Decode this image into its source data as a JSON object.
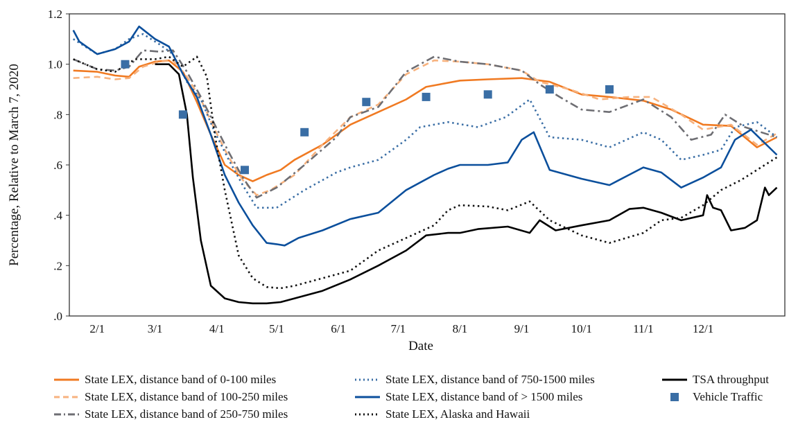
{
  "chart_data": {
    "type": "line",
    "xlabel": "Date",
    "ylabel": "Percentage, Relative to March 7, 2020",
    "x_ticks": [
      "2/1",
      "3/1",
      "4/1",
      "5/1",
      "6/1",
      "7/1",
      "8/1",
      "9/1",
      "10/1",
      "11/1",
      "12/1"
    ],
    "y_ticks": [
      ".0",
      ".2",
      ".4",
      ".6",
      ".8",
      "1.0",
      "1.2"
    ],
    "ylim": [
      0,
      1.2
    ],
    "xlim": [
      "2020-01-18",
      "2021-01-11"
    ],
    "grid": false,
    "legend_position": "bottom",
    "series": [
      {
        "name": "State LEX, distance band of 0-100 miles",
        "color": "#f07a22",
        "style": "solid",
        "points": [
          [
            "2020-01-20",
            0.975
          ],
          [
            "2020-02-01",
            0.97
          ],
          [
            "2020-02-10",
            0.955
          ],
          [
            "2020-02-17",
            0.95
          ],
          [
            "2020-02-22",
            0.99
          ],
          [
            "2020-03-01",
            1.01
          ],
          [
            "2020-03-08",
            1.015
          ],
          [
            "2020-03-15",
            0.97
          ],
          [
            "2020-03-22",
            0.85
          ],
          [
            "2020-03-29",
            0.72
          ],
          [
            "2020-04-05",
            0.6
          ],
          [
            "2020-04-12",
            0.56
          ],
          [
            "2020-04-19",
            0.535
          ],
          [
            "2020-04-26",
            0.56
          ],
          [
            "2020-05-03",
            0.58
          ],
          [
            "2020-05-10",
            0.62
          ],
          [
            "2020-05-24",
            0.68
          ],
          [
            "2020-06-07",
            0.76
          ],
          [
            "2020-06-21",
            0.81
          ],
          [
            "2020-07-05",
            0.86
          ],
          [
            "2020-07-15",
            0.91
          ],
          [
            "2020-08-01",
            0.935
          ],
          [
            "2020-08-15",
            0.94
          ],
          [
            "2020-09-01",
            0.945
          ],
          [
            "2020-09-15",
            0.93
          ],
          [
            "2020-10-01",
            0.88
          ],
          [
            "2020-10-15",
            0.87
          ],
          [
            "2020-11-01",
            0.855
          ],
          [
            "2020-11-15",
            0.82
          ],
          [
            "2020-12-01",
            0.76
          ],
          [
            "2020-12-15",
            0.755
          ],
          [
            "2020-12-28",
            0.67
          ],
          [
            "2021-01-07",
            0.71
          ]
        ]
      },
      {
        "name": "State LEX, distance band of 100-250 miles",
        "color": "#f7b27e",
        "style": "dashed",
        "points": [
          [
            "2020-01-20",
            0.945
          ],
          [
            "2020-02-01",
            0.95
          ],
          [
            "2020-02-10",
            0.94
          ],
          [
            "2020-02-17",
            0.945
          ],
          [
            "2020-02-24",
            0.99
          ],
          [
            "2020-03-03",
            1.01
          ],
          [
            "2020-03-10",
            1.015
          ],
          [
            "2020-03-17",
            0.95
          ],
          [
            "2020-03-24",
            0.86
          ],
          [
            "2020-03-31",
            0.74
          ],
          [
            "2020-04-07",
            0.63
          ],
          [
            "2020-04-14",
            0.54
          ],
          [
            "2020-04-21",
            0.48
          ],
          [
            "2020-04-28",
            0.5
          ],
          [
            "2020-05-10",
            0.56
          ],
          [
            "2020-05-24",
            0.68
          ],
          [
            "2020-06-07",
            0.79
          ],
          [
            "2020-06-21",
            0.84
          ],
          [
            "2020-07-05",
            0.96
          ],
          [
            "2020-07-19",
            1.015
          ],
          [
            "2020-08-01",
            1.01
          ],
          [
            "2020-08-15",
            1.0
          ],
          [
            "2020-09-01",
            0.975
          ],
          [
            "2020-09-10",
            0.93
          ],
          [
            "2020-09-25",
            0.9
          ],
          [
            "2020-10-10",
            0.86
          ],
          [
            "2020-10-25",
            0.87
          ],
          [
            "2020-11-05",
            0.87
          ],
          [
            "2020-11-20",
            0.8
          ],
          [
            "2020-12-01",
            0.74
          ],
          [
            "2020-12-15",
            0.76
          ],
          [
            "2020-12-28",
            0.68
          ],
          [
            "2021-01-07",
            0.725
          ]
        ]
      },
      {
        "name": "State LEX, distance band of 250-750 miles",
        "color": "#6e6e73",
        "style": "dashdot",
        "points": [
          [
            "2020-01-20",
            1.02
          ],
          [
            "2020-02-01",
            0.98
          ],
          [
            "2020-02-10",
            0.975
          ],
          [
            "2020-02-17",
            0.99
          ],
          [
            "2020-02-24",
            1.055
          ],
          [
            "2020-03-03",
            1.05
          ],
          [
            "2020-03-10",
            1.055
          ],
          [
            "2020-03-17",
            0.97
          ],
          [
            "2020-03-24",
            0.87
          ],
          [
            "2020-03-31",
            0.76
          ],
          [
            "2020-04-07",
            0.65
          ],
          [
            "2020-04-14",
            0.55
          ],
          [
            "2020-04-21",
            0.47
          ],
          [
            "2020-05-01",
            0.51
          ],
          [
            "2020-05-15",
            0.6
          ],
          [
            "2020-05-31",
            0.71
          ],
          [
            "2020-06-07",
            0.79
          ],
          [
            "2020-06-21",
            0.83
          ],
          [
            "2020-07-05",
            0.97
          ],
          [
            "2020-07-19",
            1.03
          ],
          [
            "2020-08-01",
            1.01
          ],
          [
            "2020-08-15",
            1.0
          ],
          [
            "2020-09-01",
            0.975
          ],
          [
            "2020-09-10",
            0.92
          ],
          [
            "2020-09-20",
            0.87
          ],
          [
            "2020-10-01",
            0.82
          ],
          [
            "2020-10-15",
            0.81
          ],
          [
            "2020-11-01",
            0.86
          ],
          [
            "2020-11-15",
            0.79
          ],
          [
            "2020-11-25",
            0.7
          ],
          [
            "2020-12-05",
            0.72
          ],
          [
            "2020-12-12",
            0.8
          ],
          [
            "2020-12-22",
            0.75
          ],
          [
            "2021-01-07",
            0.71
          ]
        ]
      },
      {
        "name": "State LEX, distance band of 750-1500 miles",
        "color": "#3a6ea5",
        "style": "dotted",
        "points": [
          [
            "2020-01-20",
            1.1
          ],
          [
            "2020-02-01",
            1.04
          ],
          [
            "2020-02-10",
            1.06
          ],
          [
            "2020-02-17",
            1.1
          ],
          [
            "2020-02-24",
            1.12
          ],
          [
            "2020-03-03",
            1.08
          ],
          [
            "2020-03-10",
            1.04
          ],
          [
            "2020-03-17",
            0.93
          ],
          [
            "2020-03-24",
            0.86
          ],
          [
            "2020-03-31",
            0.73
          ],
          [
            "2020-04-07",
            0.62
          ],
          [
            "2020-04-14",
            0.52
          ],
          [
            "2020-04-21",
            0.43
          ],
          [
            "2020-05-01",
            0.43
          ],
          [
            "2020-05-15",
            0.5
          ],
          [
            "2020-05-31",
            0.57
          ],
          [
            "2020-06-07",
            0.59
          ],
          [
            "2020-06-21",
            0.62
          ],
          [
            "2020-07-05",
            0.7
          ],
          [
            "2020-07-12",
            0.75
          ],
          [
            "2020-07-26",
            0.77
          ],
          [
            "2020-08-10",
            0.75
          ],
          [
            "2020-08-24",
            0.79
          ],
          [
            "2020-09-05",
            0.86
          ],
          [
            "2020-09-15",
            0.71
          ],
          [
            "2020-10-01",
            0.7
          ],
          [
            "2020-10-15",
            0.67
          ],
          [
            "2020-11-01",
            0.73
          ],
          [
            "2020-11-10",
            0.7
          ],
          [
            "2020-11-20",
            0.62
          ],
          [
            "2020-12-01",
            0.64
          ],
          [
            "2020-12-10",
            0.66
          ],
          [
            "2020-12-17",
            0.75
          ],
          [
            "2020-12-28",
            0.77
          ],
          [
            "2021-01-07",
            0.71
          ]
        ]
      },
      {
        "name": "State LEX, distance band of > 1500 miles",
        "color": "#0b4f9c",
        "style": "solid",
        "points": [
          [
            "2020-01-20",
            1.135
          ],
          [
            "2020-01-23",
            1.09
          ],
          [
            "2020-02-01",
            1.04
          ],
          [
            "2020-02-10",
            1.06
          ],
          [
            "2020-02-17",
            1.09
          ],
          [
            "2020-02-22",
            1.15
          ],
          [
            "2020-03-01",
            1.1
          ],
          [
            "2020-03-08",
            1.07
          ],
          [
            "2020-03-15",
            0.96
          ],
          [
            "2020-03-22",
            0.87
          ],
          [
            "2020-03-29",
            0.72
          ],
          [
            "2020-04-05",
            0.56
          ],
          [
            "2020-04-12",
            0.45
          ],
          [
            "2020-04-19",
            0.36
          ],
          [
            "2020-04-26",
            0.29
          ],
          [
            "2020-05-01",
            0.285
          ],
          [
            "2020-05-05",
            0.28
          ],
          [
            "2020-05-12",
            0.31
          ],
          [
            "2020-05-24",
            0.34
          ],
          [
            "2020-06-07",
            0.385
          ],
          [
            "2020-06-21",
            0.41
          ],
          [
            "2020-07-05",
            0.5
          ],
          [
            "2020-07-19",
            0.56
          ],
          [
            "2020-07-26",
            0.585
          ],
          [
            "2020-08-01",
            0.6
          ],
          [
            "2020-08-15",
            0.6
          ],
          [
            "2020-08-25",
            0.61
          ],
          [
            "2020-09-01",
            0.7
          ],
          [
            "2020-09-07",
            0.73
          ],
          [
            "2020-09-15",
            0.58
          ],
          [
            "2020-10-01",
            0.545
          ],
          [
            "2020-10-15",
            0.52
          ],
          [
            "2020-11-01",
            0.59
          ],
          [
            "2020-11-10",
            0.57
          ],
          [
            "2020-11-20",
            0.51
          ],
          [
            "2020-12-01",
            0.55
          ],
          [
            "2020-12-10",
            0.59
          ],
          [
            "2020-12-17",
            0.7
          ],
          [
            "2020-12-25",
            0.74
          ],
          [
            "2021-01-07",
            0.64
          ]
        ]
      },
      {
        "name": "State LEX, Alaska and Hawaii",
        "color": "#111111",
        "style": "dotted",
        "points": [
          [
            "2020-01-20",
            1.02
          ],
          [
            "2020-02-01",
            0.98
          ],
          [
            "2020-02-10",
            0.97
          ],
          [
            "2020-02-20",
            1.02
          ],
          [
            "2020-03-01",
            1.02
          ],
          [
            "2020-03-08",
            1.03
          ],
          [
            "2020-03-15",
            0.99
          ],
          [
            "2020-03-22",
            1.03
          ],
          [
            "2020-03-27",
            0.95
          ],
          [
            "2020-03-31",
            0.72
          ],
          [
            "2020-04-05",
            0.5
          ],
          [
            "2020-04-12",
            0.24
          ],
          [
            "2020-04-19",
            0.15
          ],
          [
            "2020-04-26",
            0.115
          ],
          [
            "2020-05-03",
            0.11
          ],
          [
            "2020-05-10",
            0.12
          ],
          [
            "2020-05-24",
            0.15
          ],
          [
            "2020-06-07",
            0.18
          ],
          [
            "2020-06-21",
            0.26
          ],
          [
            "2020-07-05",
            0.31
          ],
          [
            "2020-07-19",
            0.36
          ],
          [
            "2020-07-26",
            0.42
          ],
          [
            "2020-08-01",
            0.44
          ],
          [
            "2020-08-15",
            0.435
          ],
          [
            "2020-08-25",
            0.42
          ],
          [
            "2020-09-05",
            0.455
          ],
          [
            "2020-09-15",
            0.38
          ],
          [
            "2020-10-01",
            0.32
          ],
          [
            "2020-10-15",
            0.29
          ],
          [
            "2020-11-01",
            0.33
          ],
          [
            "2020-11-10",
            0.38
          ],
          [
            "2020-11-20",
            0.39
          ],
          [
            "2020-12-01",
            0.44
          ],
          [
            "2020-12-10",
            0.5
          ],
          [
            "2020-12-20",
            0.54
          ],
          [
            "2021-01-07",
            0.63
          ]
        ]
      },
      {
        "name": "TSA throughput",
        "color": "#000000",
        "style": "solid",
        "points": [
          [
            "2020-03-01",
            1.0
          ],
          [
            "2020-03-08",
            1.0
          ],
          [
            "2020-03-13",
            0.96
          ],
          [
            "2020-03-17",
            0.8
          ],
          [
            "2020-03-20",
            0.55
          ],
          [
            "2020-03-24",
            0.3
          ],
          [
            "2020-03-29",
            0.12
          ],
          [
            "2020-04-05",
            0.07
          ],
          [
            "2020-04-12",
            0.055
          ],
          [
            "2020-04-19",
            0.05
          ],
          [
            "2020-04-26",
            0.05
          ],
          [
            "2020-05-03",
            0.055
          ],
          [
            "2020-05-10",
            0.07
          ],
          [
            "2020-05-24",
            0.1
          ],
          [
            "2020-06-07",
            0.145
          ],
          [
            "2020-06-21",
            0.2
          ],
          [
            "2020-07-05",
            0.26
          ],
          [
            "2020-07-15",
            0.32
          ],
          [
            "2020-07-26",
            0.33
          ],
          [
            "2020-08-01",
            0.33
          ],
          [
            "2020-08-10",
            0.345
          ],
          [
            "2020-08-25",
            0.355
          ],
          [
            "2020-09-05",
            0.33
          ],
          [
            "2020-09-10",
            0.38
          ],
          [
            "2020-09-18",
            0.34
          ],
          [
            "2020-10-01",
            0.36
          ],
          [
            "2020-10-15",
            0.38
          ],
          [
            "2020-10-25",
            0.425
          ],
          [
            "2020-11-01",
            0.43
          ],
          [
            "2020-11-10",
            0.41
          ],
          [
            "2020-11-20",
            0.38
          ],
          [
            "2020-12-01",
            0.4
          ],
          [
            "2020-12-03",
            0.48
          ],
          [
            "2020-12-06",
            0.43
          ],
          [
            "2020-12-10",
            0.42
          ],
          [
            "2020-12-15",
            0.34
          ],
          [
            "2020-12-22",
            0.35
          ],
          [
            "2020-12-28",
            0.38
          ],
          [
            "2021-01-01",
            0.51
          ],
          [
            "2021-01-03",
            0.48
          ],
          [
            "2021-01-07",
            0.51
          ]
        ]
      }
    ],
    "markers": {
      "name": "Vehicle Traffic",
      "color": "#3a6ea5",
      "points": [
        [
          "2020-02-15",
          1.0
        ],
        [
          "2020-03-15",
          0.8
        ],
        [
          "2020-04-15",
          0.58
        ],
        [
          "2020-05-15",
          0.73
        ],
        [
          "2020-06-15",
          0.85
        ],
        [
          "2020-07-15",
          0.87
        ],
        [
          "2020-08-15",
          0.88
        ],
        [
          "2020-09-15",
          0.9
        ],
        [
          "2020-10-15",
          0.9
        ]
      ]
    }
  },
  "legend": {
    "col1": [
      "State LEX, distance band of 0-100 miles",
      "State LEX, distance band of 100-250 miles",
      "State LEX, distance band of 250-750 miles"
    ],
    "col2": [
      "State LEX, distance band of 750-1500 miles",
      "State LEX, distance band of > 1500 miles",
      "State LEX, Alaska and Hawaii"
    ],
    "col3": [
      "TSA throughput",
      "Vehicle Traffic"
    ]
  }
}
